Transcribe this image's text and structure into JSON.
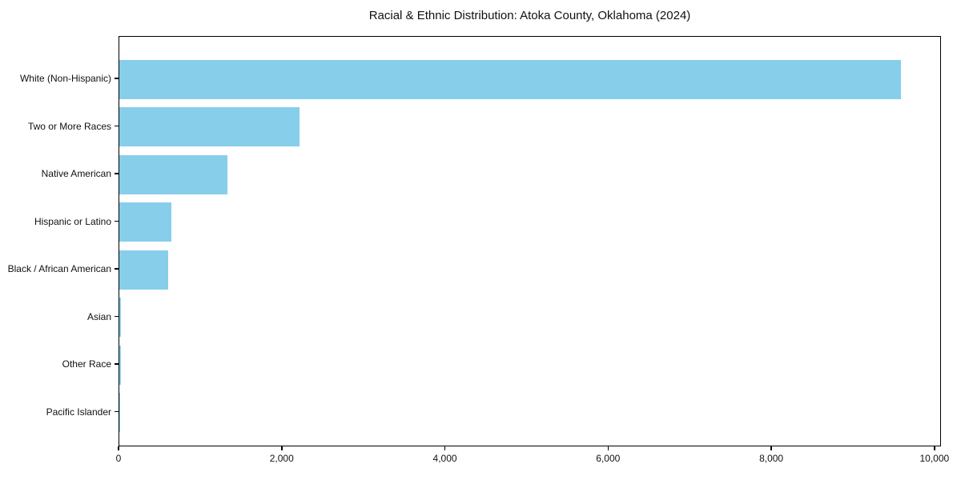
{
  "figure": {
    "background": "#ffffff"
  },
  "chart_data": {
    "type": "bar",
    "orientation": "horizontal",
    "title": "Racial & Ethnic Distribution: Atoka County, Oklahoma (2024)",
    "categories": [
      "White (Non-Hispanic)",
      "Two or More Races",
      "Native American",
      "Hispanic or Latino",
      "Black / African American",
      "Asian",
      "Other Race",
      "Pacific Islander"
    ],
    "values": [
      9600,
      2210,
      1330,
      640,
      600,
      20,
      15,
      4
    ],
    "xlabel": "",
    "ylabel": "",
    "xlim": [
      0,
      10080
    ],
    "xticks": [
      0,
      2000,
      4000,
      6000,
      8000,
      10000
    ],
    "xtick_labels": [
      "0",
      "2,000",
      "4,000",
      "6,000",
      "8,000",
      "10,000"
    ],
    "bar_color": "#87CEEB",
    "axis_color": "#000000",
    "text_color": "#111111",
    "grid": false,
    "legend": null
  }
}
